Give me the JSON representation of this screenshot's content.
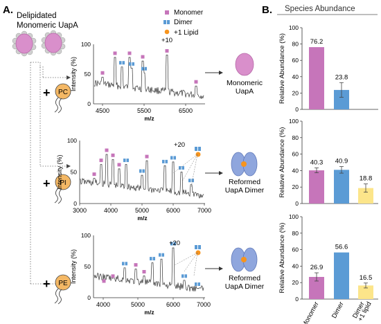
{
  "panel_a": {
    "label": "A.",
    "title_line1": "Delipidated",
    "title_line2": "Monomeric UapA",
    "legend": {
      "monomer": "Monomer",
      "dimer": "Dimer",
      "lipid": "+1 Lipid"
    },
    "rows": [
      {
        "lipid": "PC",
        "charge_label": "+10",
        "product_line1": "Monomeric",
        "product_line2": "UapA"
      },
      {
        "lipid": "PI",
        "charge_label": "+20",
        "product_line1": "Reformed",
        "product_line2": "UapA Dimer"
      },
      {
        "lipid": "PE",
        "charge_label": "+20",
        "product_line1": "Reformed",
        "product_line2": "UapA Dimer"
      }
    ],
    "y_axis_label": "Intensity (%)",
    "x_axis_label": "m/z",
    "spectra": [
      {
        "x_ticks": [
          "4500",
          "5500",
          "6500"
        ],
        "y_ticks": [
          "0",
          "50",
          "100"
        ]
      },
      {
        "x_ticks": [
          "3000",
          "4000",
          "5000",
          "6000",
          "7000"
        ],
        "y_ticks": [
          "0",
          "50",
          "100"
        ]
      },
      {
        "x_ticks": [
          "4000",
          "5000",
          "6000",
          "7000"
        ],
        "y_ticks": [
          "0",
          "50",
          "100"
        ]
      }
    ]
  },
  "panel_b": {
    "label": "B.",
    "title": "Species Abundance"
  },
  "colors": {
    "monomer": "#c675ba",
    "dimer": "#5b9bd5",
    "lipid": "#f7941d",
    "lipid_bar": "#fce58a",
    "protein_pink": "#d98fcb",
    "protein_blue": "#8fa6dd"
  },
  "chart_data": [
    {
      "type": "bar",
      "ylabel": "Relative Abundance (%)",
      "ylim": [
        0,
        100
      ],
      "y_ticks": [
        "0",
        "20",
        "40",
        "60",
        "80",
        "100"
      ],
      "categories": [
        "Monomer",
        "Dimer"
      ],
      "values": [
        76.2,
        23.8
      ],
      "value_labels": [
        "76.2",
        "23.8"
      ],
      "errors": [
        0,
        9
      ]
    },
    {
      "type": "bar",
      "ylabel": "Relative Abundance (%)",
      "ylim": [
        0,
        100
      ],
      "y_ticks": [
        "0",
        "20",
        "40",
        "60",
        "80",
        "100"
      ],
      "categories": [
        "Monomer",
        "Dimer",
        "Dimer +1 lipid"
      ],
      "values": [
        40.3,
        40.9,
        18.8
      ],
      "value_labels": [
        "40.3",
        "40.9",
        "18.8"
      ],
      "errors": [
        3,
        4,
        5
      ]
    },
    {
      "type": "bar",
      "ylabel": "Relative Abundance (%)",
      "ylim": [
        0,
        100
      ],
      "y_ticks": [
        "0",
        "20",
        "40",
        "60",
        "80",
        "100"
      ],
      "categories": [
        "Monomer",
        "Dimer",
        "Dimer +1 lipid"
      ],
      "category_labels": [
        "Monomer",
        "Dimer",
        "Dimer",
        "+1 lipid"
      ],
      "values": [
        26.9,
        56.6,
        16.5
      ],
      "value_labels": [
        "26.9",
        "56.6",
        "16.5"
      ],
      "errors": [
        5,
        0,
        3
      ]
    }
  ]
}
